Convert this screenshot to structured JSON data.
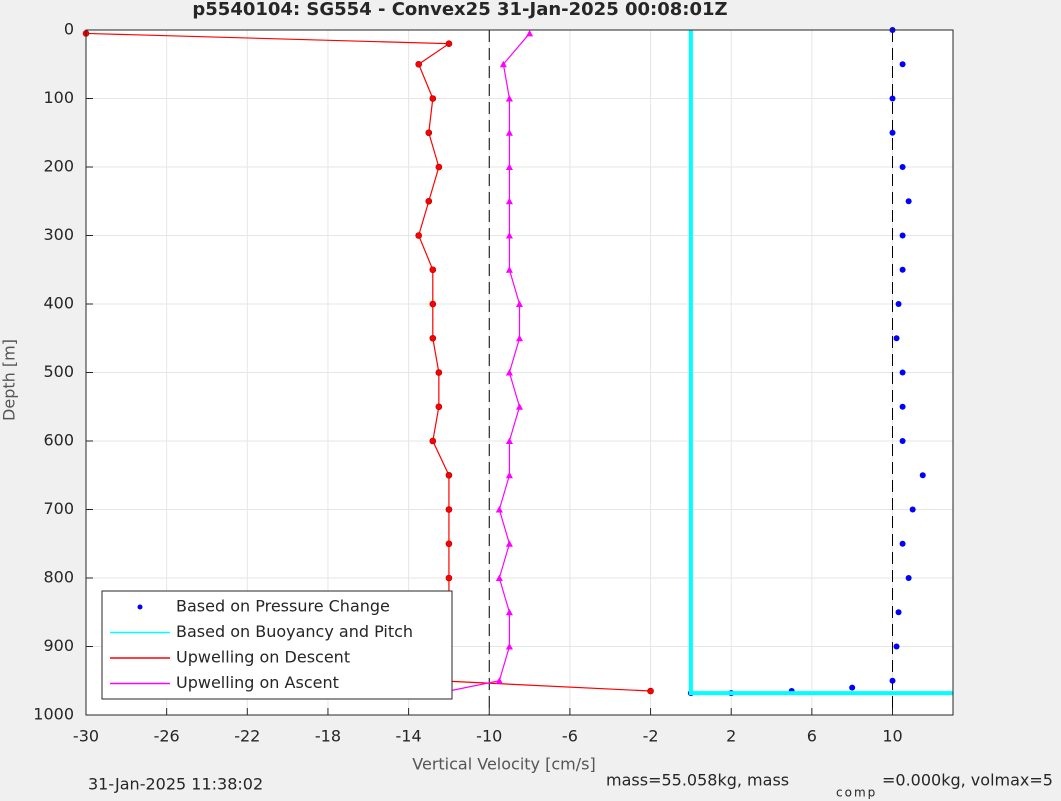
{
  "chart_data": {
    "type": "line",
    "title": "p5540104: SG554 - Convex25 31-Jan-2025 00:08:01Z",
    "x_label": "Vertical Velocity [cm/s]",
    "y_label": "Depth [m]",
    "xlim": [
      -30,
      13
    ],
    "ylim": [
      0,
      1000
    ],
    "y_reversed": true,
    "xticks": [
      -30,
      -26,
      -22,
      -18,
      -14,
      -10,
      -6,
      -2,
      2,
      6,
      10
    ],
    "yticks": [
      0,
      100,
      200,
      300,
      400,
      500,
      600,
      700,
      800,
      900,
      1000
    ],
    "grid": true,
    "reference_lines": [
      -10,
      10
    ],
    "legend_position": "lower-left",
    "series": [
      {
        "name": "Based on Pressure Change",
        "color": "#0000ff",
        "marker": "dot",
        "line": false,
        "x": [
          10,
          10.5,
          10,
          10,
          10.5,
          10.8,
          10.5,
          10.5,
          10.3,
          10.2,
          10.5,
          10.5,
          10.5,
          11.5,
          11,
          10.5,
          10.8,
          10.3,
          10.2,
          10,
          8,
          5,
          2,
          0
        ],
        "y": [
          0,
          50,
          100,
          150,
          200,
          250,
          300,
          350,
          400,
          450,
          500,
          550,
          600,
          650,
          700,
          750,
          800,
          850,
          900,
          950,
          960,
          965,
          968,
          968
        ]
      },
      {
        "name": "Based on Buoyancy and Pitch",
        "color": "#00ffff",
        "marker": "none",
        "line": true,
        "x": [
          0,
          0,
          13
        ],
        "y": [
          0,
          968,
          968
        ]
      },
      {
        "name": "Upwelling on Descent",
        "color": "#ff0000",
        "marker": "circle",
        "line": true,
        "x": [
          -30,
          -12,
          -13.5,
          -12.8,
          -13,
          -12.5,
          -13,
          -13.5,
          -12.8,
          -12.8,
          -12.8,
          -12.5,
          -12.5,
          -12.8,
          -12,
          -12,
          -12,
          -12,
          -12,
          -12.5,
          -12.5,
          -2
        ],
        "y": [
          5,
          20,
          50,
          100,
          150,
          200,
          250,
          300,
          350,
          400,
          450,
          500,
          550,
          600,
          650,
          700,
          750,
          800,
          850,
          900,
          950,
          965
        ]
      },
      {
        "name": "Upwelling on Ascent",
        "color": "#ff00ff",
        "marker": "triangle",
        "line": true,
        "x": [
          -12,
          -9.5,
          -9,
          -9,
          -9.5,
          -9,
          -9.5,
          -9,
          -9,
          -8.5,
          -9,
          -8.5,
          -8.5,
          -9,
          -9,
          -9,
          -9,
          -9,
          -9,
          -9.3,
          -8
        ],
        "y": [
          965,
          950,
          900,
          850,
          800,
          750,
          700,
          650,
          600,
          550,
          500,
          450,
          400,
          350,
          300,
          250,
          200,
          150,
          100,
          50,
          5
        ]
      }
    ]
  },
  "footer": {
    "timestamp": "31-Jan-2025 11:38:02",
    "note_start": "mass=55.058kg, mass",
    "note_subscript": "comp",
    "note_end": "=0.000kg, volmax=5"
  }
}
